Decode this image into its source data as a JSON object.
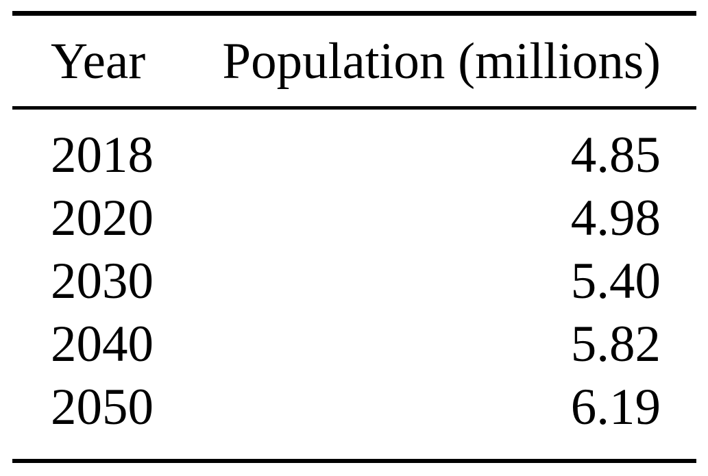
{
  "table": {
    "columns": {
      "year": "Year",
      "population": "Population (millions)"
    },
    "rows": [
      {
        "year": "2018",
        "population": "4.85"
      },
      {
        "year": "2020",
        "population": "4.98"
      },
      {
        "year": "2030",
        "population": "5.40"
      },
      {
        "year": "2040",
        "population": "5.82"
      },
      {
        "year": "2050",
        "population": "6.19"
      }
    ]
  },
  "chart_data": {
    "type": "table",
    "title": "",
    "columns": [
      "Year",
      "Population (millions)"
    ],
    "categories": [
      2018,
      2020,
      2030,
      2040,
      2050
    ],
    "values": [
      4.85,
      4.98,
      5.4,
      5.82,
      6.19
    ]
  },
  "colors": {
    "text": "#000000",
    "rule": "#000000",
    "background": "#ffffff"
  }
}
